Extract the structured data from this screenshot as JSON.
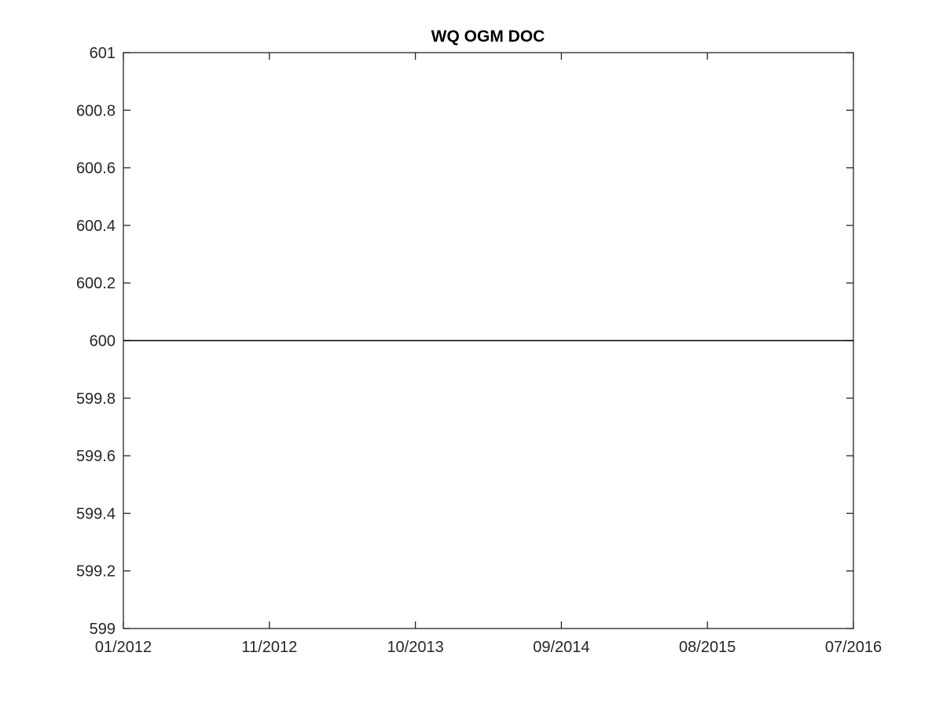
{
  "chart_data": {
    "type": "line",
    "title": "WQ OGM DOC",
    "xlabel": "",
    "ylabel": "",
    "x_tick_labels": [
      "01/2012",
      "11/2012",
      "10/2013",
      "09/2014",
      "08/2015",
      "07/2016"
    ],
    "y_tick_labels": [
      "599",
      "599.2",
      "599.4",
      "599.6",
      "599.8",
      "600",
      "600.2",
      "600.4",
      "600.6",
      "600.8",
      "601"
    ],
    "xlim": [
      "2012-01-01",
      "2016-07-01"
    ],
    "ylim": [
      599,
      601
    ],
    "grid": false,
    "legend": false,
    "series": [
      {
        "x": [
          "2012-01-01",
          "2016-07-01"
        ],
        "values": [
          600,
          600
        ],
        "color": "#000000"
      }
    ]
  }
}
